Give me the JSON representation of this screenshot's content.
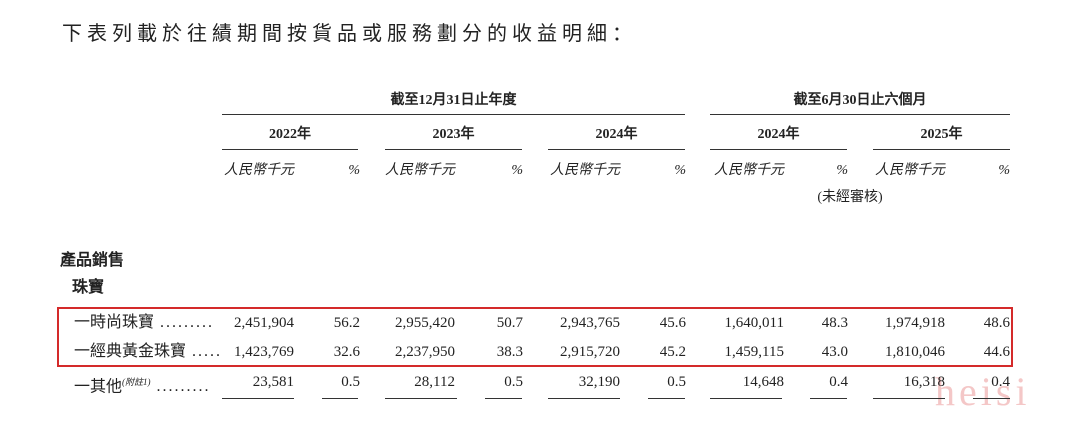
{
  "heading": "下表列載於往績期間按貨品或服務劃分的收益明細：",
  "header": {
    "groups": [
      "截至12月31日止年度",
      "截至6月30日止六個月"
    ],
    "periods": [
      "2022年",
      "2023年",
      "2024年",
      "2024年",
      "2025年"
    ],
    "amount_unit": "人民幣千元",
    "percent_unit": "%",
    "unaudited": "(未經審核)"
  },
  "section": "產品銷售",
  "subsection": "珠寶",
  "rows": [
    {
      "label": "一時尚珠寶",
      "leader": ".........",
      "cells": [
        "2,451,904",
        "56.2",
        "2,955,420",
        "50.7",
        "2,943,765",
        "45.6",
        "1,640,011",
        "48.3",
        "1,974,918",
        "48.6"
      ]
    },
    {
      "label": "一經典黃金珠寶",
      "leader": ".....",
      "cells": [
        "1,423,769",
        "32.6",
        "2,237,950",
        "38.3",
        "2,915,720",
        "45.2",
        "1,459,115",
        "43.0",
        "1,810,046",
        "44.6"
      ]
    },
    {
      "label": "一其他",
      "note": "(附註1)",
      "leader": ".........",
      "cells": [
        "23,581",
        "0.5",
        "28,112",
        "0.5",
        "32,190",
        "0.5",
        "14,648",
        "0.4",
        "16,318",
        "0.4"
      ]
    }
  ],
  "watermark": "heisi"
}
